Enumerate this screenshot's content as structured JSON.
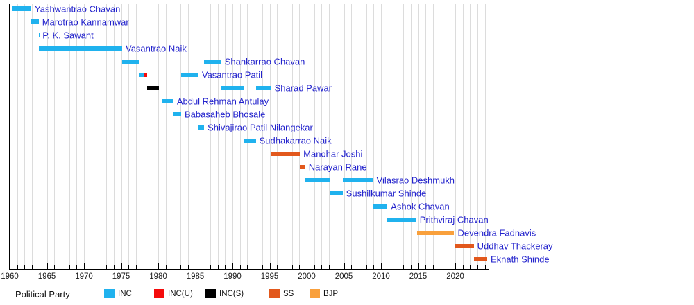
{
  "legend": {
    "label": "Political Party",
    "items": [
      {
        "label": "INC",
        "party": "INC"
      },
      {
        "label": "INC(U)",
        "party": "INC(U)"
      },
      {
        "label": "INC(S)",
        "party": "INC(S)"
      },
      {
        "label": "SS",
        "party": "SS"
      },
      {
        "label": "BJP",
        "party": "BJP"
      }
    ]
  },
  "colors": {
    "parties": {
      "INC": "#20b2ee",
      "INC(U)": "#f40b0b",
      "INC(S)": "#000000",
      "SS": "#e2581c",
      "BJP": "#f9a03c"
    },
    "person_label": "#2222cc",
    "grid": "#dcdcdc",
    "axis": "#000000"
  },
  "chart_data": {
    "type": "gantt",
    "title": "",
    "xlabel": "",
    "ylabel": "",
    "unit": "year",
    "x_axis": {
      "min": 1960,
      "max": 2024.5,
      "major_ticks": [
        1960,
        1965,
        1970,
        1975,
        1980,
        1985,
        1990,
        1995,
        2000,
        2005,
        2010,
        2015,
        2020
      ],
      "minor_tick_step": 1
    },
    "grid": true,
    "legend_position": "bottom",
    "rows": [
      {
        "name": "Yashwantrao Chavan",
        "segments": [
          {
            "party": "INC",
            "start": 1960.33,
            "end": 1962.9
          }
        ]
      },
      {
        "name": "Marotrao Kannamwar",
        "segments": [
          {
            "party": "INC",
            "start": 1962.9,
            "end": 1963.9
          }
        ]
      },
      {
        "name": "P. K. Sawant",
        "segments": [
          {
            "party": "INC",
            "start": 1963.9,
            "end": 1963.95
          }
        ]
      },
      {
        "name": "Vasantrao Naik",
        "segments": [
          {
            "party": "INC",
            "start": 1963.95,
            "end": 1975.14
          }
        ]
      },
      {
        "name": "Shankarrao Chavan",
        "segments": [
          {
            "party": "INC",
            "start": 1975.14,
            "end": 1977.37
          },
          {
            "party": "INC",
            "start": 1986.19,
            "end": 1988.48
          }
        ]
      },
      {
        "name": "Vasantrao Patil",
        "segments": [
          {
            "party": "INC",
            "start": 1977.37,
            "end": 1978.08
          },
          {
            "party": "INC(U)",
            "start": 1978.08,
            "end": 1978.54
          },
          {
            "party": "INC",
            "start": 1983.09,
            "end": 1985.41
          }
        ]
      },
      {
        "name": "Sharad Pawar",
        "segments": [
          {
            "party": "INC(S)",
            "start": 1978.54,
            "end": 1980.13
          },
          {
            "party": "INC",
            "start": 1988.48,
            "end": 1991.48
          },
          {
            "party": "INC",
            "start": 1993.17,
            "end": 1995.2
          }
        ]
      },
      {
        "name": "Abdul Rehman Antulay",
        "segments": [
          {
            "party": "INC",
            "start": 1980.44,
            "end": 1982.04
          }
        ]
      },
      {
        "name": "Babasaheb Bhosale",
        "segments": [
          {
            "party": "INC",
            "start": 1982.06,
            "end": 1983.08
          }
        ]
      },
      {
        "name": "Shivajirao Patil Nilangekar",
        "segments": [
          {
            "party": "INC",
            "start": 1985.42,
            "end": 1986.18
          }
        ]
      },
      {
        "name": "Sudhakarrao Naik",
        "segments": [
          {
            "party": "INC",
            "start": 1991.48,
            "end": 1993.14
          }
        ]
      },
      {
        "name": "Manohar Joshi",
        "segments": [
          {
            "party": "SS",
            "start": 1995.2,
            "end": 1999.08
          }
        ]
      },
      {
        "name": "Narayan Rane",
        "segments": [
          {
            "party": "SS",
            "start": 1999.09,
            "end": 1999.79
          }
        ]
      },
      {
        "name": "Vilasrao Deshmukh",
        "segments": [
          {
            "party": "INC",
            "start": 1999.8,
            "end": 2003.04
          },
          {
            "party": "INC",
            "start": 2004.84,
            "end": 2008.93
          }
        ]
      },
      {
        "name": "Sushilkumar Shinde",
        "segments": [
          {
            "party": "INC",
            "start": 2003.05,
            "end": 2004.83
          }
        ]
      },
      {
        "name": "Ashok Chavan",
        "segments": [
          {
            "party": "INC",
            "start": 2008.94,
            "end": 2010.86
          }
        ]
      },
      {
        "name": "Prithviraj Chavan",
        "segments": [
          {
            "party": "INC",
            "start": 2010.86,
            "end": 2014.74
          }
        ]
      },
      {
        "name": "Devendra Fadnavis",
        "segments": [
          {
            "party": "BJP",
            "start": 2014.83,
            "end": 2019.86
          }
        ]
      },
      {
        "name": "Uddhav Thackeray",
        "segments": [
          {
            "party": "SS",
            "start": 2019.91,
            "end": 2022.49
          }
        ]
      },
      {
        "name": "Eknath Shinde",
        "segments": [
          {
            "party": "SS",
            "start": 2022.5,
            "end": 2024.3
          }
        ]
      }
    ]
  }
}
